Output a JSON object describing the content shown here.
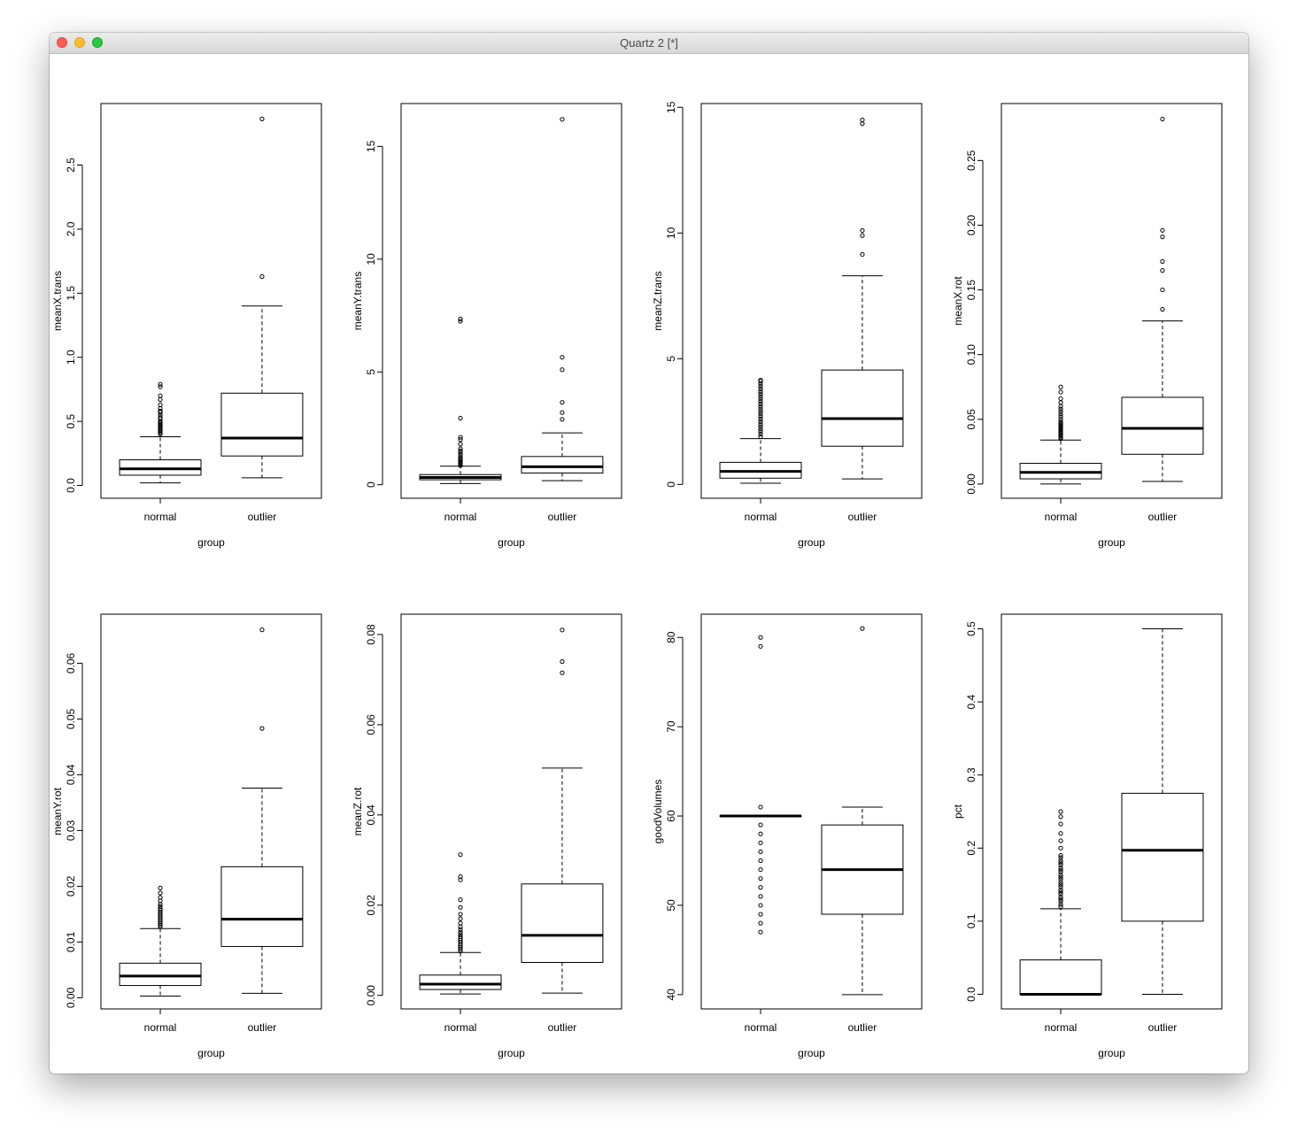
{
  "window": {
    "title": "Quartz 2 [*]"
  },
  "colors": {
    "line": "#000000",
    "box_fill": "#ffffff"
  },
  "chart_data": [
    {
      "type": "boxplot",
      "xlabel": "group",
      "ylabel": "meanX.trans",
      "categories": [
        "normal",
        "outlier"
      ],
      "ylim": [
        -0.1,
        2.98
      ],
      "yticks": [
        0.0,
        0.5,
        1.0,
        1.5,
        2.0,
        2.5
      ],
      "yticklabels": [
        "0.0",
        "0.5",
        "1.0",
        "1.5",
        "2.0",
        "2.5"
      ],
      "groups": [
        {
          "name": "normal",
          "whisker_low": 0.02,
          "q1": 0.08,
          "median": 0.13,
          "q3": 0.2,
          "whisker_high": 0.38,
          "outliers": [
            0.4,
            0.41,
            0.42,
            0.43,
            0.44,
            0.45,
            0.46,
            0.47,
            0.48,
            0.49,
            0.5,
            0.52,
            0.53,
            0.55,
            0.57,
            0.58,
            0.6,
            0.63,
            0.67,
            0.7,
            0.77,
            0.79
          ]
        },
        {
          "name": "outlier",
          "whisker_low": 0.06,
          "q1": 0.23,
          "median": 0.37,
          "q3": 0.72,
          "whisker_high": 1.4,
          "outliers": [
            1.63,
            2.86
          ]
        }
      ]
    },
    {
      "type": "boxplot",
      "xlabel": "group",
      "ylabel": "meanY.trans",
      "categories": [
        "normal",
        "outlier"
      ],
      "ylim": [
        -0.6,
        16.9
      ],
      "yticks": [
        0,
        5,
        10,
        15
      ],
      "yticklabels": [
        "0",
        "5",
        "10",
        "15"
      ],
      "groups": [
        {
          "name": "normal",
          "whisker_low": 0.05,
          "q1": 0.22,
          "median": 0.32,
          "q3": 0.45,
          "whisker_high": 0.82,
          "outliers": [
            0.85,
            0.9,
            0.95,
            1.0,
            1.05,
            1.1,
            1.15,
            1.2,
            1.3,
            1.4,
            1.5,
            1.6,
            1.8,
            2.0,
            2.1,
            2.95,
            7.25,
            7.35
          ]
        },
        {
          "name": "outlier",
          "whisker_low": 0.18,
          "q1": 0.52,
          "median": 0.8,
          "q3": 1.25,
          "whisker_high": 2.3,
          "outliers": [
            2.9,
            3.2,
            3.65,
            5.1,
            5.65,
            16.2
          ]
        }
      ]
    },
    {
      "type": "boxplot",
      "xlabel": "group",
      "ylabel": "meanZ.trans",
      "categories": [
        "normal",
        "outlier"
      ],
      "ylim": [
        -0.55,
        15.15
      ],
      "yticks": [
        0,
        5,
        10,
        15
      ],
      "yticklabels": [
        "0",
        "5",
        "10",
        "15"
      ],
      "groups": [
        {
          "name": "normal",
          "whisker_low": 0.05,
          "q1": 0.25,
          "median": 0.52,
          "q3": 0.88,
          "whisker_high": 1.82,
          "outliers": [
            1.9,
            2.0,
            2.1,
            2.2,
            2.3,
            2.4,
            2.5,
            2.6,
            2.7,
            2.8,
            2.9,
            3.0,
            3.1,
            3.2,
            3.3,
            3.4,
            3.5,
            3.6,
            3.7,
            3.8,
            3.9,
            4.0,
            4.1,
            4.15
          ]
        },
        {
          "name": "outlier",
          "whisker_low": 0.22,
          "q1": 1.52,
          "median": 2.62,
          "q3": 4.55,
          "whisker_high": 8.3,
          "outliers": [
            9.15,
            9.9,
            10.1,
            14.35,
            14.5
          ]
        }
      ]
    },
    {
      "type": "boxplot",
      "xlabel": "group",
      "ylabel": "meanX.rot",
      "categories": [
        "normal",
        "outlier"
      ],
      "ylim": [
        -0.011,
        0.294
      ],
      "yticks": [
        0.0,
        0.05,
        0.1,
        0.15,
        0.2,
        0.25
      ],
      "yticklabels": [
        "0.00",
        "0.05",
        "0.10",
        "0.15",
        "0.20",
        "0.25"
      ],
      "groups": [
        {
          "name": "normal",
          "whisker_low": 0.0,
          "q1": 0.004,
          "median": 0.009,
          "q3": 0.016,
          "whisker_high": 0.034,
          "outliers": [
            0.035,
            0.036,
            0.037,
            0.038,
            0.039,
            0.04,
            0.041,
            0.042,
            0.043,
            0.044,
            0.045,
            0.046,
            0.047,
            0.048,
            0.05,
            0.052,
            0.054,
            0.056,
            0.058,
            0.06,
            0.063,
            0.066,
            0.071,
            0.075
          ]
        },
        {
          "name": "outlier",
          "whisker_low": 0.002,
          "q1": 0.023,
          "median": 0.043,
          "q3": 0.067,
          "whisker_high": 0.126,
          "outliers": [
            0.135,
            0.15,
            0.165,
            0.172,
            0.191,
            0.196,
            0.282
          ]
        }
      ]
    },
    {
      "type": "boxplot",
      "xlabel": "group",
      "ylabel": "meanY.rot",
      "categories": [
        "normal",
        "outlier"
      ],
      "ylim": [
        -0.002,
        0.0688
      ],
      "yticks": [
        0.0,
        0.01,
        0.02,
        0.03,
        0.04,
        0.05,
        0.06
      ],
      "yticklabels": [
        "0.00",
        "0.01",
        "0.02",
        "0.03",
        "0.04",
        "0.05",
        "0.06"
      ],
      "groups": [
        {
          "name": "normal",
          "whisker_low": 0.0003,
          "q1": 0.0022,
          "median": 0.0039,
          "q3": 0.0062,
          "whisker_high": 0.0124,
          "outliers": [
            0.0127,
            0.013,
            0.0133,
            0.0136,
            0.0139,
            0.0142,
            0.0145,
            0.0148,
            0.0151,
            0.0154,
            0.0157,
            0.016,
            0.0164,
            0.0168,
            0.0174,
            0.018,
            0.0188,
            0.0197
          ]
        },
        {
          "name": "outlier",
          "whisker_low": 0.0008,
          "q1": 0.0092,
          "median": 0.0141,
          "q3": 0.0235,
          "whisker_high": 0.0376,
          "outliers": [
            0.0483,
            0.066
          ]
        }
      ]
    },
    {
      "type": "boxplot",
      "xlabel": "group",
      "ylabel": "meanZ.rot",
      "categories": [
        "normal",
        "outlier"
      ],
      "ylim": [
        -0.003,
        0.0845
      ],
      "yticks": [
        0.0,
        0.02,
        0.04,
        0.06,
        0.08
      ],
      "yticklabels": [
        "0.00",
        "0.02",
        "0.04",
        "0.06",
        "0.08"
      ],
      "groups": [
        {
          "name": "normal",
          "whisker_low": 0.0003,
          "q1": 0.0013,
          "median": 0.0025,
          "q3": 0.0045,
          "whisker_high": 0.0095,
          "outliers": [
            0.0098,
            0.0102,
            0.0106,
            0.011,
            0.0114,
            0.0118,
            0.0122,
            0.0126,
            0.013,
            0.0135,
            0.014,
            0.0146,
            0.0152,
            0.016,
            0.017,
            0.018,
            0.0195,
            0.0212,
            0.0256,
            0.0263,
            0.0312
          ]
        },
        {
          "name": "outlier",
          "whisker_low": 0.0005,
          "q1": 0.0073,
          "median": 0.0133,
          "q3": 0.0247,
          "whisker_high": 0.0504,
          "outliers": [
            0.0715,
            0.074,
            0.081
          ]
        }
      ]
    },
    {
      "type": "boxplot",
      "xlabel": "group",
      "ylabel": "goodVolumes",
      "categories": [
        "normal",
        "outlier"
      ],
      "ylim": [
        38.4,
        82.6
      ],
      "yticks": [
        40,
        50,
        60,
        70,
        80
      ],
      "yticklabels": [
        "40",
        "50",
        "60",
        "70",
        "80"
      ],
      "groups": [
        {
          "name": "normal",
          "whisker_low": 60,
          "q1": 60,
          "median": 60,
          "q3": 60,
          "whisker_high": 60,
          "outliers": [
            47,
            48,
            49,
            50,
            51,
            52,
            53,
            54,
            55,
            56,
            57,
            58,
            59,
            61,
            79,
            80
          ]
        },
        {
          "name": "outlier",
          "whisker_low": 40,
          "q1": 49,
          "median": 54,
          "q3": 59,
          "whisker_high": 61,
          "outliers": [
            81
          ]
        }
      ]
    },
    {
      "type": "boxplot",
      "xlabel": "group",
      "ylabel": "pct",
      "categories": [
        "normal",
        "outlier"
      ],
      "ylim": [
        -0.02,
        0.52
      ],
      "yticks": [
        0.0,
        0.1,
        0.2,
        0.3,
        0.4,
        0.5
      ],
      "yticklabels": [
        "0.0",
        "0.1",
        "0.2",
        "0.3",
        "0.4",
        "0.5"
      ],
      "groups": [
        {
          "name": "normal",
          "whisker_low": 0.0,
          "q1": 0.0,
          "median": 0.0,
          "q3": 0.047,
          "whisker_high": 0.117,
          "outliers": [
            0.12,
            0.123,
            0.127,
            0.13,
            0.133,
            0.137,
            0.14,
            0.143,
            0.147,
            0.15,
            0.153,
            0.157,
            0.16,
            0.163,
            0.167,
            0.17,
            0.173,
            0.177,
            0.18,
            0.183,
            0.187,
            0.19,
            0.2,
            0.21,
            0.22,
            0.233,
            0.243,
            0.25
          ]
        },
        {
          "name": "outlier",
          "whisker_low": 0.0,
          "q1": 0.1,
          "median": 0.197,
          "q3": 0.275,
          "whisker_high": 0.5,
          "outliers": []
        }
      ]
    }
  ]
}
